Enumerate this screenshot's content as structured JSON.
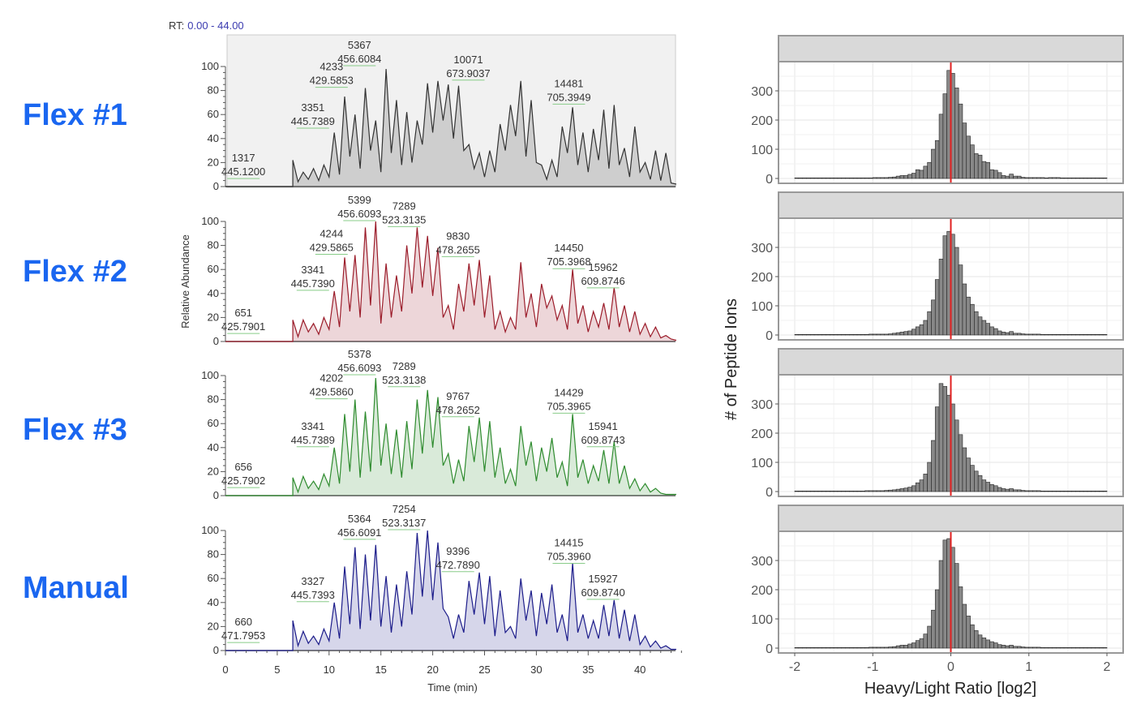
{
  "row_labels": [
    "Flex #1",
    "Flex #2",
    "Flex #3",
    "Manual"
  ],
  "rt_header": {
    "label": "RT:",
    "range": "0.00 - 44.00"
  },
  "colors": {
    "row_label": "#1a66f0",
    "traces": [
      "#333333",
      "#9b1c2a",
      "#2e8b2e",
      "#1c1c8a"
    ],
    "ratio_line": "#e02020",
    "hist_fill": "#888888",
    "strip": "#d9d9d9"
  },
  "chart_data": [
    {
      "type": "line",
      "title": "Chromatograms",
      "xlabel": "Time (min)",
      "ylabel": "Relative Abundance",
      "xlim": [
        0,
        44
      ],
      "ylim": [
        0,
        100
      ],
      "xticks": [
        0,
        5,
        10,
        15,
        20,
        25,
        30,
        35,
        40
      ],
      "yticks": [
        0,
        20,
        40,
        60,
        80,
        100
      ],
      "rt_start": 6.5,
      "rt_step": 0.5,
      "series": [
        {
          "values": [
            22,
            4,
            12,
            6,
            15,
            5,
            18,
            8,
            45,
            10,
            75,
            25,
            60,
            15,
            82,
            30,
            55,
            12,
            98,
            28,
            72,
            18,
            62,
            20,
            55,
            35,
            86,
            45,
            88,
            55,
            85,
            40,
            84,
            30,
            35,
            15,
            28,
            8,
            30,
            12,
            52,
            30,
            68,
            42,
            88,
            25,
            72,
            20,
            18,
            6,
            22,
            8,
            50,
            28,
            66,
            18,
            45,
            12,
            48,
            22,
            64,
            15,
            68,
            18,
            32,
            8,
            50,
            12,
            20,
            6,
            30,
            5,
            28,
            3,
            2
          ],
          "peaks": [
            {
              "scan": "1317",
              "mz": "445.1200",
              "rt": 3.3,
              "y": 6
            },
            {
              "scan": "3351",
              "mz": "445.7389",
              "rt": 10,
              "y": 48
            },
            {
              "scan": "4233",
              "mz": "429.5853",
              "rt": 11.8,
              "y": 82
            },
            {
              "scan": "5367",
              "mz": "456.6084",
              "rt": 14.5,
              "y": 100
            },
            {
              "scan": "10071",
              "mz": "673.9037",
              "rt": 25,
              "y": 88
            },
            {
              "scan": "14481",
              "mz": "705.3949",
              "rt": 34.7,
              "y": 68
            }
          ]
        },
        {
          "values": [
            18,
            4,
            18,
            8,
            15,
            6,
            20,
            10,
            42,
            12,
            70,
            25,
            72,
            20,
            95,
            30,
            100,
            15,
            65,
            20,
            55,
            25,
            80,
            40,
            95,
            45,
            88,
            38,
            78,
            20,
            30,
            10,
            48,
            25,
            65,
            30,
            68,
            20,
            55,
            10,
            25,
            8,
            20,
            10,
            66,
            20,
            40,
            12,
            48,
            28,
            38,
            18,
            30,
            10,
            60,
            15,
            30,
            8,
            25,
            12,
            32,
            10,
            45,
            12,
            30,
            8,
            25,
            6,
            15,
            4,
            12,
            3,
            5,
            2,
            1
          ],
          "peaks": [
            {
              "scan": "651",
              "mz": "425.7901",
              "rt": 3.3,
              "y": 6
            },
            {
              "scan": "3341",
              "mz": "445.7390",
              "rt": 10,
              "y": 42
            },
            {
              "scan": "4244",
              "mz": "429.5865",
              "rt": 11.8,
              "y": 72
            },
            {
              "scan": "5399",
              "mz": "456.6093",
              "rt": 14.5,
              "y": 100
            },
            {
              "scan": "7289",
              "mz": "523.3135",
              "rt": 18.8,
              "y": 95
            },
            {
              "scan": "9830",
              "mz": "478.2655",
              "rt": 24,
              "y": 70
            },
            {
              "scan": "14450",
              "mz": "705.3968",
              "rt": 34.7,
              "y": 60
            },
            {
              "scan": "15962",
              "mz": "609.8746",
              "rt": 38,
              "y": 44
            }
          ]
        },
        {
          "values": [
            15,
            3,
            16,
            6,
            12,
            5,
            18,
            8,
            40,
            10,
            68,
            20,
            80,
            15,
            70,
            20,
            98,
            25,
            60,
            18,
            55,
            15,
            62,
            22,
            80,
            35,
            88,
            40,
            82,
            25,
            35,
            10,
            30,
            12,
            58,
            28,
            65,
            20,
            62,
            15,
            40,
            10,
            22,
            8,
            58,
            25,
            45,
            12,
            40,
            20,
            48,
            15,
            28,
            8,
            68,
            15,
            30,
            10,
            25,
            12,
            38,
            10,
            45,
            10,
            25,
            6,
            14,
            4,
            10,
            3,
            6,
            2,
            1,
            1,
            1
          ],
          "peaks": [
            {
              "scan": "656",
              "mz": "425.7902",
              "rt": 3.3,
              "y": 6
            },
            {
              "scan": "3341",
              "mz": "445.7389",
              "rt": 10,
              "y": 40
            },
            {
              "scan": "4202",
              "mz": "429.5860",
              "rt": 11.8,
              "y": 80
            },
            {
              "scan": "5378",
              "mz": "456.6093",
              "rt": 14.5,
              "y": 100
            },
            {
              "scan": "7289",
              "mz": "523.3138",
              "rt": 18.8,
              "y": 90
            },
            {
              "scan": "9767",
              "mz": "478.2652",
              "rt": 24,
              "y": 65
            },
            {
              "scan": "14429",
              "mz": "705.3965",
              "rt": 34.7,
              "y": 68
            },
            {
              "scan": "15941",
              "mz": "609.8743",
              "rt": 38,
              "y": 40
            }
          ]
        },
        {
          "values": [
            25,
            4,
            16,
            6,
            12,
            5,
            18,
            8,
            40,
            10,
            70,
            22,
            86,
            18,
            80,
            25,
            88,
            20,
            62,
            15,
            55,
            20,
            66,
            30,
            98,
            45,
            100,
            42,
            90,
            35,
            28,
            10,
            30,
            15,
            58,
            30,
            65,
            22,
            62,
            12,
            50,
            15,
            20,
            10,
            60,
            25,
            50,
            12,
            48,
            22,
            55,
            15,
            30,
            8,
            73,
            15,
            30,
            10,
            25,
            10,
            38,
            12,
            42,
            10,
            34,
            8,
            30,
            5,
            12,
            3,
            8,
            2,
            4,
            1,
            1
          ],
          "peaks": [
            {
              "scan": "660",
              "mz": "471.7953",
              "rt": 3.3,
              "y": 6
            },
            {
              "scan": "3327",
              "mz": "445.7393",
              "rt": 10,
              "y": 40
            },
            {
              "scan": "5364",
              "mz": "456.6091",
              "rt": 14.5,
              "y": 92
            },
            {
              "scan": "7254",
              "mz": "523.3137",
              "rt": 18.8,
              "y": 100
            },
            {
              "scan": "9396",
              "mz": "472.7890",
              "rt": 24,
              "y": 65
            },
            {
              "scan": "14415",
              "mz": "705.3960",
              "rt": 34.7,
              "y": 72
            },
            {
              "scan": "15927",
              "mz": "609.8740",
              "rt": 38,
              "y": 42
            }
          ]
        }
      ]
    },
    {
      "type": "bar",
      "title": "",
      "xlabel": "Heavy/Light Ratio [log2]",
      "ylabel": "# of Peptide Ions",
      "xlim": [
        -2.1,
        2.1
      ],
      "ylim": [
        0,
        400
      ],
      "xticks": [
        -2,
        -1,
        0,
        1,
        2
      ],
      "yticks": [
        0,
        100,
        200,
        300
      ],
      "grid": true,
      "reference_line_x": 0,
      "bin_start": -2,
      "bin_width": 0.05,
      "panels": [
        {
          "counts": [
            2,
            2,
            2,
            2,
            2,
            2,
            2,
            2,
            2,
            2,
            2,
            2,
            2,
            2,
            2,
            2,
            2,
            2,
            2,
            2,
            3,
            3,
            3,
            3,
            4,
            5,
            8,
            10,
            10,
            14,
            18,
            30,
            28,
            42,
            55,
            100,
            130,
            220,
            290,
            370,
            360,
            310,
            255,
            190,
            145,
            115,
            85,
            80,
            58,
            55,
            30,
            28,
            20,
            10,
            8,
            15,
            8,
            8,
            4,
            3,
            3,
            3,
            3,
            3,
            2,
            3,
            3,
            3,
            2,
            2,
            2,
            2,
            2,
            2,
            2,
            2,
            2,
            2,
            2,
            2
          ]
        },
        {
          "counts": [
            2,
            2,
            2,
            2,
            2,
            2,
            2,
            2,
            2,
            2,
            2,
            2,
            2,
            2,
            2,
            2,
            2,
            2,
            2,
            3,
            3,
            3,
            3,
            3,
            4,
            6,
            8,
            10,
            12,
            14,
            20,
            28,
            35,
            50,
            80,
            120,
            190,
            260,
            340,
            355,
            345,
            300,
            240,
            175,
            130,
            105,
            80,
            62,
            50,
            40,
            28,
            22,
            14,
            10,
            8,
            12,
            6,
            6,
            4,
            3,
            3,
            3,
            3,
            2,
            2,
            2,
            2,
            2,
            2,
            2,
            2,
            2,
            2,
            2,
            2,
            2,
            2,
            2,
            2,
            2
          ]
        },
        {
          "counts": [
            2,
            2,
            2,
            2,
            2,
            2,
            2,
            2,
            2,
            2,
            2,
            2,
            2,
            2,
            2,
            2,
            2,
            2,
            3,
            3,
            3,
            3,
            3,
            4,
            5,
            6,
            8,
            10,
            12,
            15,
            20,
            30,
            40,
            60,
            100,
            175,
            290,
            370,
            360,
            330,
            300,
            245,
            195,
            150,
            115,
            90,
            70,
            55,
            40,
            32,
            24,
            20,
            14,
            10,
            8,
            10,
            6,
            6,
            4,
            3,
            3,
            3,
            3,
            2,
            2,
            2,
            2,
            2,
            2,
            2,
            2,
            2,
            2,
            2,
            2,
            2,
            2,
            2,
            2,
            2
          ]
        },
        {
          "counts": [
            2,
            2,
            2,
            2,
            2,
            2,
            2,
            2,
            2,
            2,
            2,
            2,
            2,
            2,
            2,
            2,
            2,
            2,
            2,
            3,
            3,
            3,
            3,
            3,
            4,
            5,
            8,
            10,
            10,
            14,
            18,
            26,
            32,
            48,
            75,
            130,
            200,
            300,
            370,
            375,
            345,
            290,
            210,
            150,
            110,
            80,
            60,
            45,
            35,
            28,
            22,
            18,
            12,
            10,
            8,
            10,
            6,
            6,
            4,
            3,
            3,
            3,
            3,
            2,
            2,
            2,
            2,
            2,
            2,
            2,
            2,
            2,
            2,
            2,
            2,
            2,
            2,
            2,
            2,
            2
          ]
        }
      ]
    }
  ]
}
